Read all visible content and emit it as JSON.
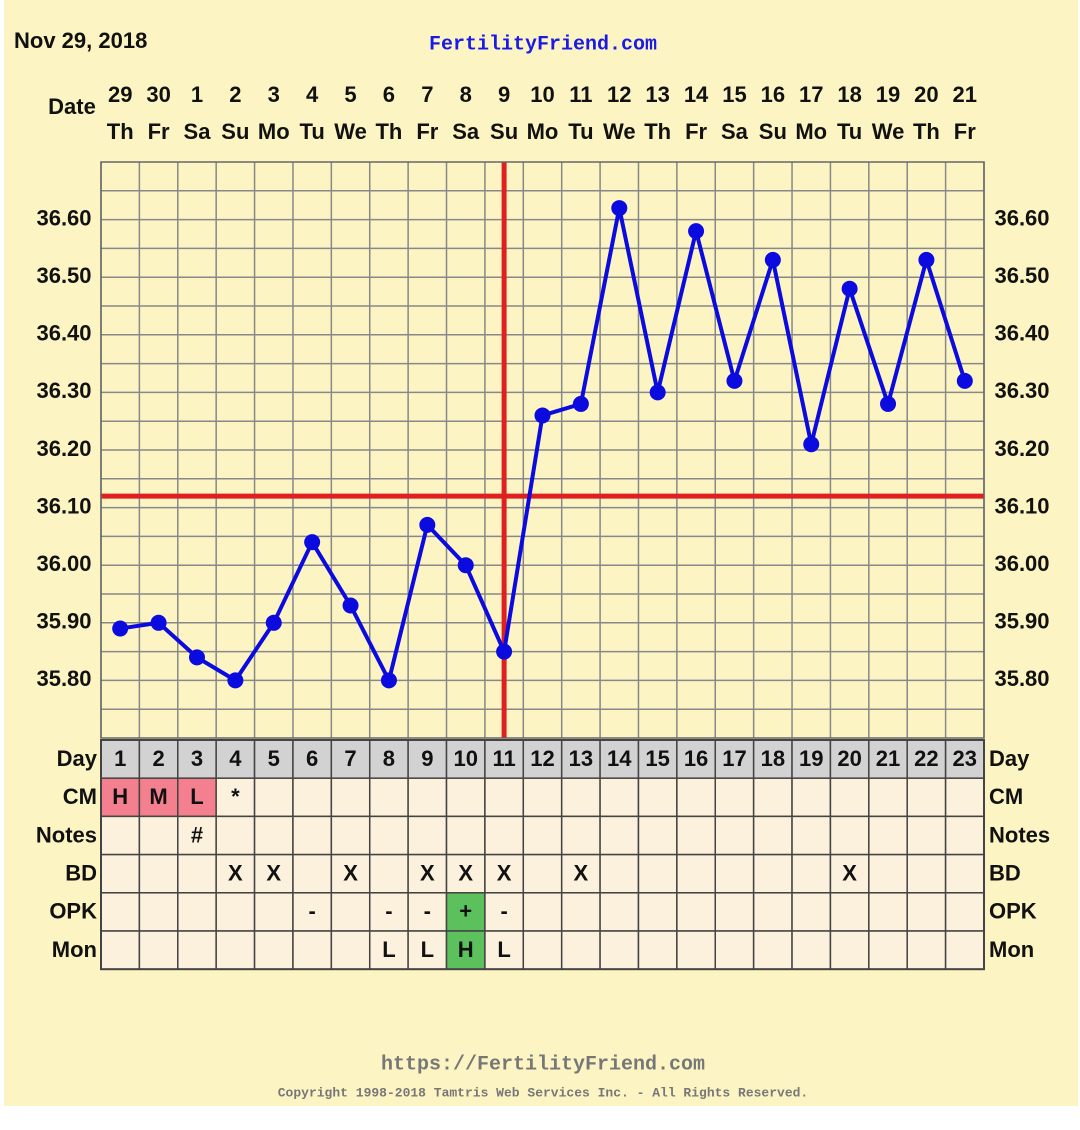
{
  "date_stamp": "Nov 29, 2018",
  "site": "FertilityFriend.com",
  "chart_data": {
    "type": "line",
    "date_label": "Date",
    "categories": [
      29,
      30,
      1,
      2,
      3,
      4,
      5,
      6,
      7,
      8,
      9,
      10,
      11,
      12,
      13,
      14,
      15,
      16,
      17,
      18,
      19,
      20,
      21
    ],
    "weekdays": [
      "Th",
      "Fr",
      "Sa",
      "Su",
      "Mo",
      "Tu",
      "We",
      "Th",
      "Fr",
      "Sa",
      "Su",
      "Mo",
      "Tu",
      "We",
      "Th",
      "Fr",
      "Sa",
      "Su",
      "Mo",
      "Tu",
      "We",
      "Th",
      "Fr"
    ],
    "values": [
      35.89,
      35.9,
      35.84,
      35.8,
      35.9,
      36.04,
      35.93,
      35.8,
      36.07,
      36.0,
      35.85,
      36.26,
      36.28,
      36.62,
      36.3,
      36.58,
      36.32,
      36.53,
      36.21,
      36.48,
      36.28,
      36.53,
      36.32
    ],
    "color": "#0b0be0",
    "ylim": [
      35.7,
      36.7
    ],
    "yticks": [
      {
        "value": 35.8,
        "label": "35.80"
      },
      {
        "value": 35.9,
        "label": "35.90"
      },
      {
        "value": 36.0,
        "label": "36.00"
      },
      {
        "value": 36.1,
        "label": "36.10"
      },
      {
        "value": 36.2,
        "label": "36.20"
      },
      {
        "value": 36.3,
        "label": "36.30"
      },
      {
        "value": 36.4,
        "label": "36.40"
      },
      {
        "value": 36.5,
        "label": "36.50"
      },
      {
        "value": 36.6,
        "label": "36.60"
      }
    ],
    "ygrid": [
      35.75,
      35.85,
      35.95,
      36.05,
      36.15,
      36.25,
      36.35,
      36.45,
      36.55,
      36.65
    ],
    "coverline": 36.12,
    "marker_color": "#e02020",
    "ovulation_day": 11
  },
  "table": {
    "rows": [
      {
        "label": "Day",
        "cells": [
          1,
          2,
          3,
          4,
          5,
          6,
          7,
          8,
          9,
          10,
          11,
          12,
          13,
          14,
          15,
          16,
          17,
          18,
          19,
          20,
          21,
          22,
          23
        ]
      },
      {
        "label": "CM",
        "cells": [
          "H",
          "M",
          "L",
          "*",
          null,
          null,
          null,
          null,
          null,
          null,
          null,
          null,
          null,
          null,
          null,
          null,
          null,
          null,
          null,
          null,
          null,
          null,
          null
        ],
        "fills": [
          "#f4808f",
          "#f4808f",
          "#f4808f",
          null,
          null,
          null,
          null,
          null,
          null,
          null,
          null,
          null,
          null,
          null,
          null,
          null,
          null,
          null,
          null,
          null,
          null,
          null,
          null
        ]
      },
      {
        "label": "Notes",
        "cells": [
          null,
          null,
          "#",
          null,
          null,
          null,
          null,
          null,
          null,
          null,
          null,
          null,
          null,
          null,
          null,
          null,
          null,
          null,
          null,
          null,
          null,
          null,
          null
        ]
      },
      {
        "label": "BD",
        "cells": [
          null,
          null,
          null,
          "X",
          "X",
          null,
          "X",
          null,
          "X",
          "X",
          "X",
          null,
          "X",
          null,
          null,
          null,
          null,
          null,
          null,
          "X",
          null,
          null,
          null
        ]
      },
      {
        "label": "OPK",
        "cells": [
          null,
          null,
          null,
          null,
          null,
          "-",
          null,
          "-",
          "-",
          "+",
          "-",
          null,
          null,
          null,
          null,
          null,
          null,
          null,
          null,
          null,
          null,
          null,
          null
        ],
        "fills": [
          null,
          null,
          null,
          null,
          null,
          null,
          null,
          null,
          null,
          "#5cc05c",
          null,
          null,
          null,
          null,
          null,
          null,
          null,
          null,
          null,
          null,
          null,
          null,
          null
        ]
      },
      {
        "label": "Mon",
        "cells": [
          null,
          null,
          null,
          null,
          null,
          null,
          null,
          "L",
          "L",
          "H",
          "L",
          null,
          null,
          null,
          null,
          null,
          null,
          null,
          null,
          null,
          null,
          null,
          null
        ],
        "fills": [
          null,
          null,
          null,
          null,
          null,
          null,
          null,
          null,
          null,
          "#5cc05c",
          null,
          null,
          null,
          null,
          null,
          null,
          null,
          null,
          null,
          null,
          null,
          null,
          null
        ]
      }
    ]
  },
  "footer": {
    "url": "https://FertilityFriend.com",
    "copyright": "Copyright 1998-2018 Tamtris Web Services Inc. - All Rights Reserved."
  }
}
